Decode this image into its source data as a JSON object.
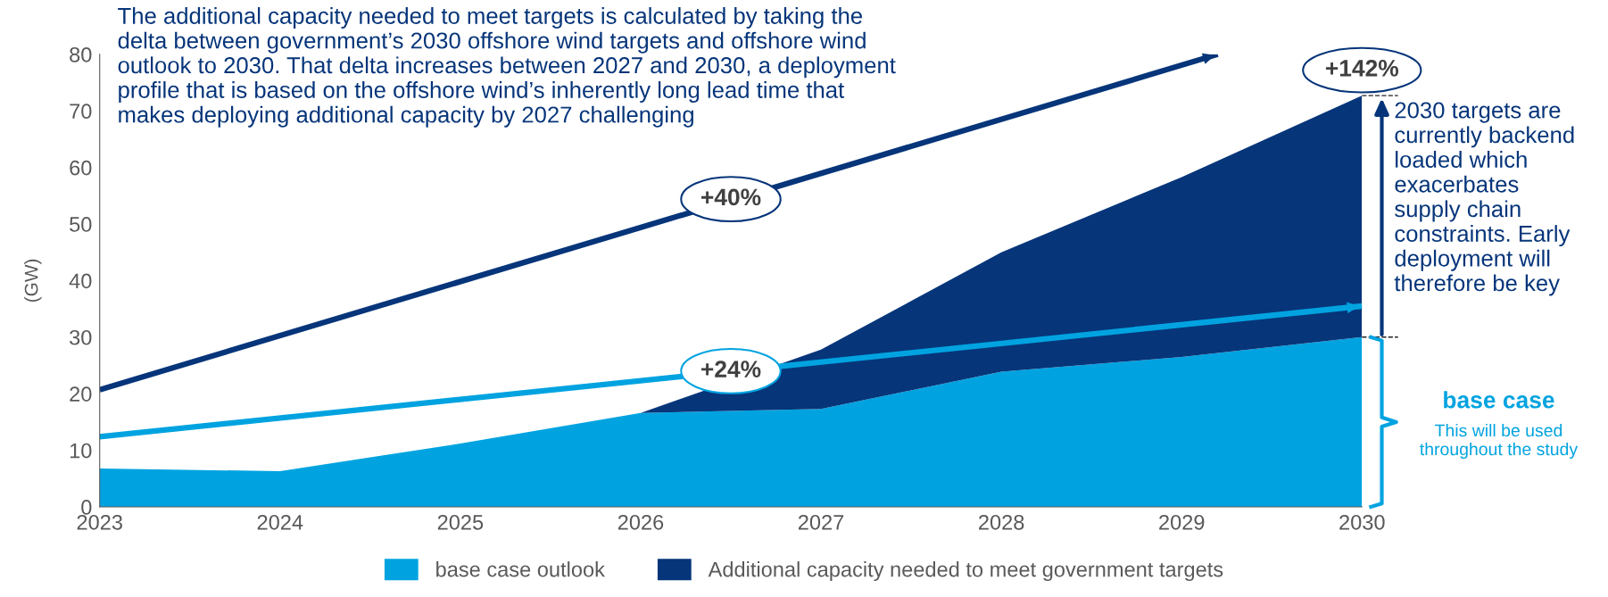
{
  "chart_data": {
    "type": "area",
    "stacked": true,
    "ylabel": "(GW)",
    "x": [
      2023,
      2024,
      2025,
      2026,
      2027,
      2028,
      2029,
      2030
    ],
    "xlim": [
      2023,
      2030
    ],
    "xticks": [
      2023,
      2024,
      2025,
      2026,
      2027,
      2028,
      2029,
      2030
    ],
    "ylim": [
      0,
      80
    ],
    "yticks": [
      0,
      10,
      20,
      30,
      40,
      50,
      60,
      70,
      80
    ],
    "grid": false,
    "legend": "bottom",
    "series": [
      {
        "name": "base case outlook",
        "color": "#00a3e0",
        "values": [
          6.8,
          6.3,
          11.2,
          16.6,
          17.3,
          23.9,
          26.5,
          30
        ]
      },
      {
        "name": "Additional capacity needed to meet government targets",
        "color": "#06357a",
        "values": [
          0,
          0,
          0,
          0,
          10.5,
          21.1,
          31.8,
          42.7
        ]
      },
      {
        "type": "line",
        "color": "#06357a",
        "x": [
          2023,
          2029.2
        ],
        "values": [
          20.7,
          80
        ]
      },
      {
        "type": "line",
        "color": "#00a3e0",
        "x": [
          2023,
          2030
        ],
        "values": [
          12.4,
          35.5
        ]
      }
    ],
    "annotations": [
      "The additional capacity needed to meet targets is calculated by taking the delta between government’s 2030 offshore wind targets and offshore wind outlook to 2030. That delta increases between 2027 and 2030, a deployment profile that is based on the offshore wind’s inherently long lead time that makes deploying additional capacity by 2027 challenging",
      "2030 targets are currently backend loaded which exacerbates supply chain constraints. Early deployment will therefore be key",
      "base case",
      "This will be used throughout the study",
      "+40%",
      "+24%",
      "+142%"
    ]
  }
}
